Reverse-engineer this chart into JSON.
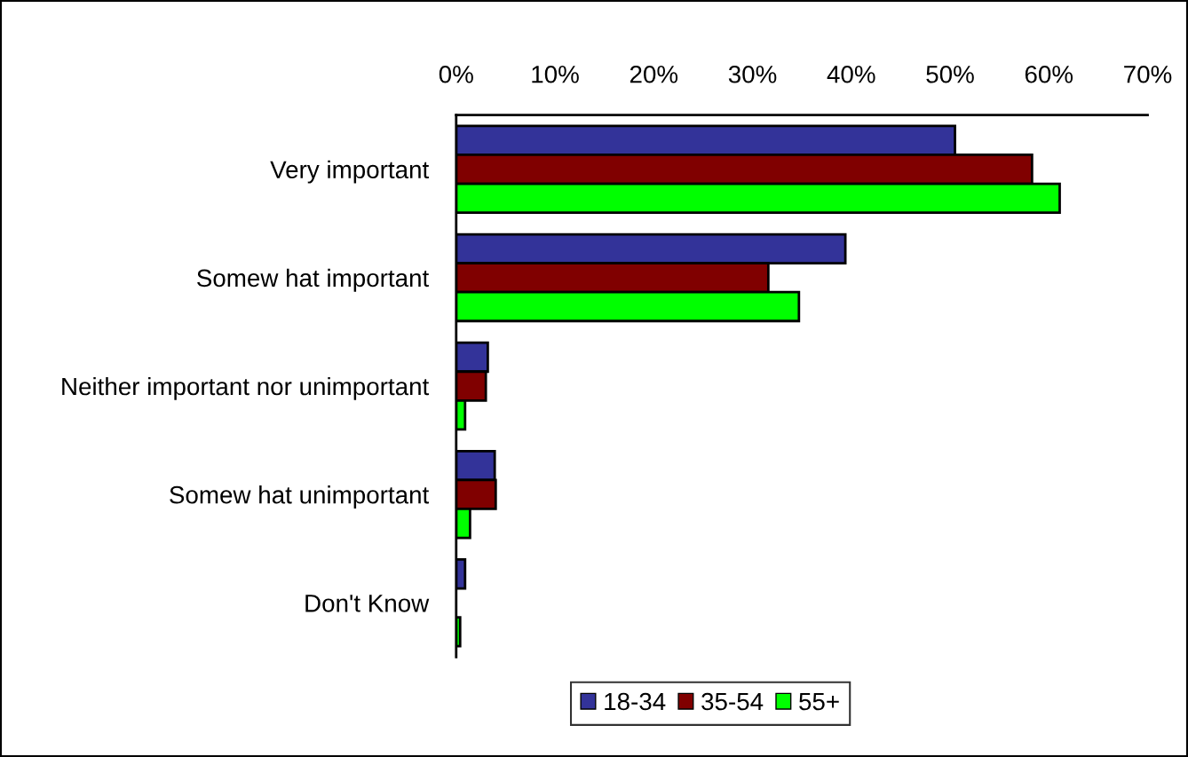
{
  "chart_data": {
    "type": "bar",
    "orientation": "horizontal",
    "categories": [
      "Very important",
      "Somew hat important",
      "Neither important nor unimportant",
      "Somew hat unimportant",
      "Don't Know"
    ],
    "series": [
      {
        "name": "18-34",
        "color": "#333399",
        "values": [
          50.5,
          39.4,
          3.2,
          3.9,
          0.9
        ]
      },
      {
        "name": "35-54",
        "color": "#800000",
        "values": [
          58.3,
          31.6,
          3.0,
          4.0,
          null
        ]
      },
      {
        "name": "55+",
        "color": "#00ff00",
        "values": [
          61.1,
          34.7,
          0.9,
          1.4,
          0.4
        ]
      }
    ],
    "xlim": [
      0,
      70
    ],
    "xticks": [
      {
        "value": 0,
        "label": "0%"
      },
      {
        "value": 10,
        "label": "10%"
      },
      {
        "value": 20,
        "label": "20%"
      },
      {
        "value": 30,
        "label": "30%"
      },
      {
        "value": 40,
        "label": "40%"
      },
      {
        "value": 50,
        "label": "50%"
      },
      {
        "value": 60,
        "label": "60%"
      },
      {
        "value": 70,
        "label": "70%"
      }
    ],
    "grid": false,
    "legend": "bottom"
  }
}
